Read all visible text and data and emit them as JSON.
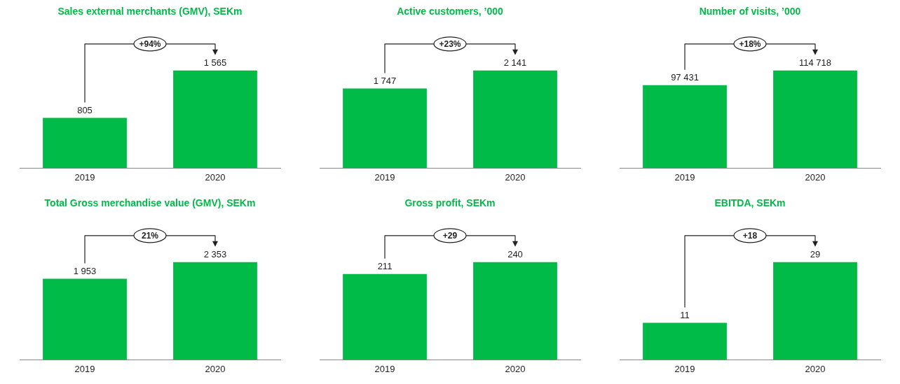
{
  "chart_data": [
    {
      "type": "bar",
      "title": "Sales external merchants (GMV), SEKm",
      "categories": [
        "2019",
        "2020"
      ],
      "values": [
        805,
        1565
      ],
      "value_labels": [
        "805",
        "1 565"
      ],
      "color": "#00bb48",
      "annotations": [
        "+94%"
      ],
      "grid": false,
      "legend": false,
      "tick_labels": "x"
    },
    {
      "type": "bar",
      "title": "Active customers, ’000",
      "categories": [
        "2019",
        "2020"
      ],
      "values": [
        1747,
        2141
      ],
      "value_labels": [
        "1 747",
        "2 141"
      ],
      "color": "#00bb48",
      "annotations": [
        "+23%"
      ],
      "grid": false,
      "legend": false,
      "tick_labels": "x"
    },
    {
      "type": "bar",
      "title": "Number of visits, ’000",
      "categories": [
        "2019",
        "2020"
      ],
      "values": [
        97431,
        114718
      ],
      "value_labels": [
        "97 431",
        "114 718"
      ],
      "color": "#00bb48",
      "annotations": [
        "+18%"
      ],
      "grid": false,
      "legend": false,
      "tick_labels": "x"
    },
    {
      "type": "bar",
      "title": "Total Gross merchandise value (GMV), SEKm",
      "categories": [
        "2019",
        "2020"
      ],
      "values": [
        1953,
        2353
      ],
      "value_labels": [
        "1 953",
        "2 353"
      ],
      "color": "#00bb48",
      "annotations": [
        "21%"
      ],
      "grid": false,
      "legend": false,
      "tick_labels": "x"
    },
    {
      "type": "bar",
      "title": "Gross profit, SEKm",
      "categories": [
        "2019",
        "2020"
      ],
      "values": [
        211,
        240
      ],
      "value_labels": [
        "211",
        "240"
      ],
      "color": "#00bb48",
      "annotations": [
        "+29"
      ],
      "grid": false,
      "legend": false,
      "tick_labels": "x"
    },
    {
      "type": "bar",
      "title": "EBITDA, SEKm",
      "categories": [
        "2019",
        "2020"
      ],
      "values": [
        11,
        29
      ],
      "value_labels": [
        "11",
        "29"
      ],
      "color": "#00bb48",
      "annotations": [
        "+18"
      ],
      "grid": false,
      "legend": false,
      "tick_labels": "x"
    }
  ]
}
